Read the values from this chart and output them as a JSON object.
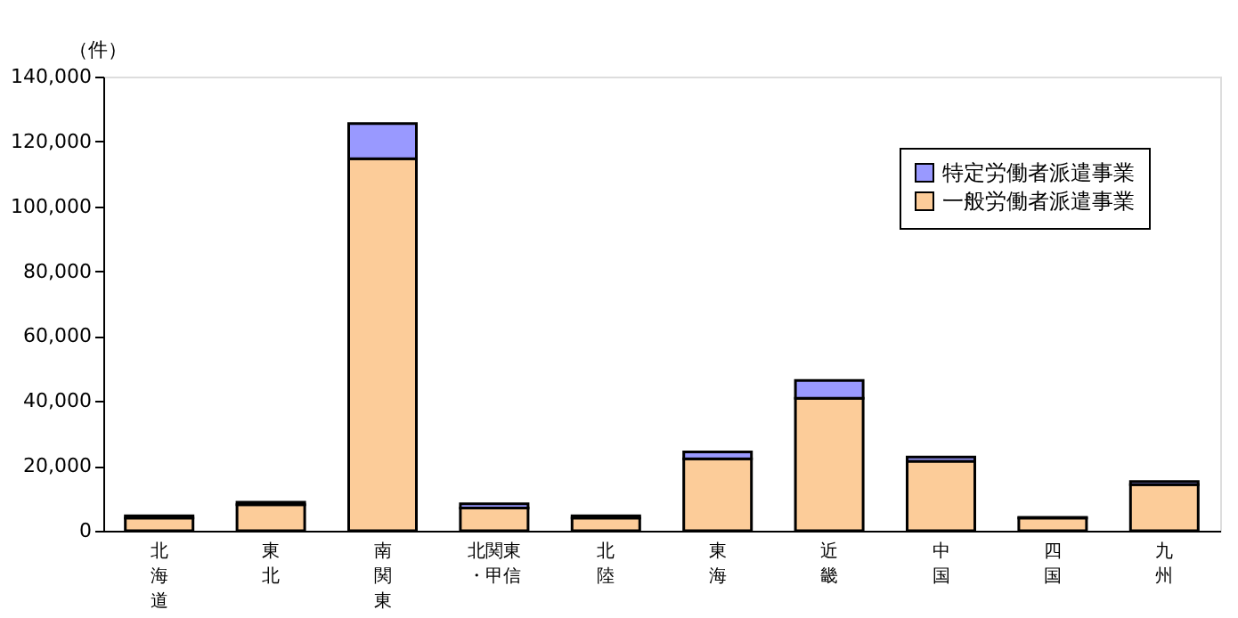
{
  "chart_data": {
    "type": "bar",
    "stacked": true,
    "ylabel": "（件）",
    "categories": [
      "北海道",
      "東北",
      "南関東",
      "北関東・甲信",
      "北陸",
      "東海",
      "近畿",
      "中国",
      "四国",
      "九州"
    ],
    "series": [
      {
        "name": "一般労働者派遣事業",
        "color": "#fccc99",
        "values": [
          3900,
          8000,
          114700,
          7000,
          3900,
          22200,
          40800,
          21400,
          3900,
          14200
        ]
      },
      {
        "name": "特定労働者派遣事業",
        "color": "#9999ff",
        "values": [
          700,
          800,
          10800,
          1300,
          700,
          2100,
          5500,
          1300,
          200,
          1000
        ]
      }
    ],
    "ylim": [
      0,
      140000
    ],
    "yticks": [
      0,
      {
        "value": 20000,
        "label": "20,000"
      },
      {
        "value": 40000,
        "label": "40,000"
      },
      {
        "value": 60000,
        "label": "60,000"
      },
      {
        "value": 80000,
        "label": "80,000"
      },
      {
        "value": 100000,
        "label": "100,000"
      },
      {
        "value": 120000,
        "label": "120,000"
      },
      {
        "value": 140000,
        "label": "140,000"
      }
    ],
    "grid": false,
    "legend": "top right"
  }
}
